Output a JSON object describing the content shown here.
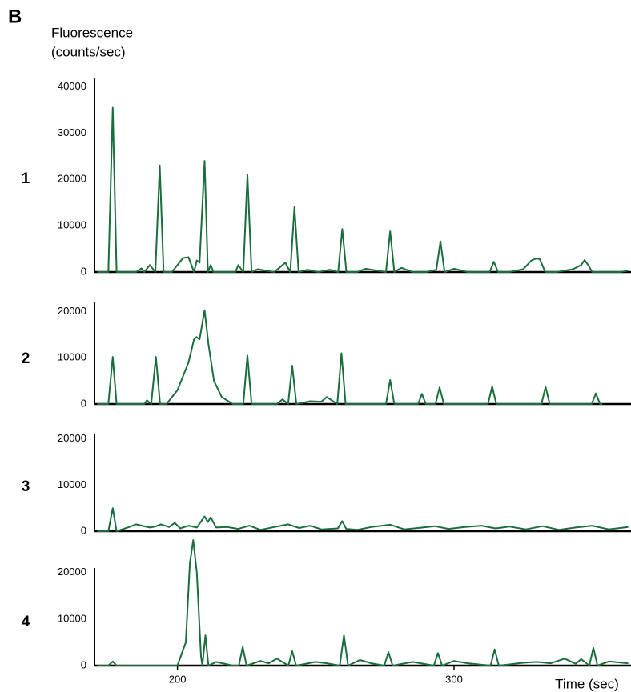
{
  "panel_label": "B",
  "chart_data": [
    {
      "type": "line",
      "title": "1",
      "y_label": [
        "Fluorescence",
        "(counts/sec)"
      ],
      "color": "#1a6e3c",
      "xlim": [
        170,
        364
      ],
      "ylim": [
        0,
        42000
      ],
      "yticks": [
        0,
        10000,
        20000,
        30000,
        40000
      ],
      "x": [
        171,
        175,
        176.6,
        178,
        185,
        187,
        188,
        190,
        192,
        193.6,
        195,
        198,
        202,
        204,
        206,
        207,
        208,
        209.8,
        211,
        212,
        213,
        218,
        221,
        222,
        223.8,
        225.3,
        226.8,
        229,
        235,
        238,
        239,
        240.8,
        242.3,
        243.8,
        247,
        251,
        255,
        258.1,
        259.6,
        261.1,
        265,
        268,
        275.4,
        276.9,
        278.4,
        281,
        285,
        290,
        293.6,
        295.1,
        296.6,
        300,
        305,
        310,
        312.9,
        314.4,
        315.9,
        320,
        325,
        328,
        329.7,
        331,
        333,
        337,
        343,
        346,
        347.2,
        348.5,
        350,
        355,
        360,
        363
      ],
      "values": [
        0,
        0,
        35500,
        0,
        0,
        800,
        0,
        1500,
        0,
        23000,
        0,
        0,
        3000,
        3200,
        0,
        2500,
        2000,
        24000,
        0,
        1500,
        0,
        0,
        0,
        1500,
        0,
        21000,
        0,
        600,
        0,
        1500,
        2000,
        0,
        14000,
        0,
        500,
        0,
        500,
        0,
        9300,
        0,
        0,
        700,
        0,
        8800,
        0,
        900,
        0,
        0,
        500,
        6600,
        0,
        700,
        0,
        0,
        0,
        2200,
        0,
        0,
        600,
        2500,
        2900,
        2800,
        0,
        0,
        600,
        1500,
        2600,
        1500,
        0,
        0,
        0,
        300
      ]
    },
    {
      "type": "line",
      "title": "2",
      "color": "#1a6e3c",
      "xlim": [
        170,
        364
      ],
      "ylim": [
        0,
        22000
      ],
      "yticks": [
        0,
        10000,
        20000
      ],
      "x": [
        171,
        175,
        176.6,
        178,
        188,
        189,
        190.5,
        192.2,
        193.7,
        196,
        200,
        204,
        206,
        206.9,
        208,
        209.8,
        211.2,
        213.2,
        216,
        220,
        222,
        223.8,
        225.3,
        226.8,
        236,
        238,
        240,
        241.5,
        243,
        248,
        252,
        254,
        257.8,
        259.3,
        260.8,
        265,
        270,
        275.4,
        276.9,
        278.4,
        285,
        287,
        288.4,
        289.8,
        293.3,
        294.8,
        296.3,
        305,
        312.3,
        313.8,
        315.3,
        325,
        331.6,
        333.1,
        334.6,
        338,
        349.8,
        351.3,
        352.8,
        353.6
      ],
      "values": [
        0,
        0,
        10200,
        0,
        0,
        800,
        0,
        10200,
        0,
        0,
        3000,
        9000,
        14000,
        14500,
        14000,
        20300,
        13000,
        5000,
        1500,
        0,
        0,
        0,
        10500,
        0,
        0,
        1000,
        0,
        8300,
        0,
        600,
        500,
        1500,
        0,
        11000,
        0,
        0,
        0,
        0,
        5200,
        0,
        0,
        0,
        2200,
        0,
        0,
        3600,
        0,
        0,
        0,
        3800,
        0,
        0,
        0,
        3700,
        0,
        0,
        0,
        2300,
        0,
        0
      ]
    },
    {
      "type": "line",
      "title": "3",
      "color": "#1a6e3c",
      "xlim": [
        170,
        364
      ],
      "ylim": [
        0,
        21000
      ],
      "yticks": [
        0,
        10000,
        20000
      ],
      "x": [
        171,
        175,
        176.6,
        178,
        182,
        185,
        190,
        192,
        194,
        197,
        199,
        201,
        204,
        207,
        209.8,
        211,
        212,
        214,
        218,
        222,
        226,
        230,
        235,
        240,
        244,
        248,
        252,
        258,
        259.6,
        261,
        265,
        270,
        277,
        282,
        287,
        293,
        298,
        304,
        310,
        315,
        320,
        326,
        332,
        338,
        344,
        350,
        356,
        363
      ],
      "values": [
        0,
        0,
        5000,
        0,
        800,
        1500,
        800,
        1000,
        1500,
        900,
        1800,
        600,
        1200,
        800,
        3200,
        2000,
        3000,
        800,
        900,
        500,
        1200,
        300,
        900,
        1500,
        700,
        1200,
        400,
        600,
        2200,
        500,
        300,
        900,
        1400,
        400,
        700,
        1100,
        500,
        900,
        1200,
        600,
        1000,
        400,
        1100,
        300,
        800,
        1200,
        400,
        900
      ]
    },
    {
      "type": "line",
      "title": "4",
      "x_label": "Time (sec)",
      "color": "#1a6e3c",
      "xlim": [
        170,
        364
      ],
      "ylim": [
        0,
        21000
      ],
      "yticks": [
        0,
        10000,
        20000
      ],
      "xticks": [
        200,
        300
      ],
      "x": [
        171,
        175,
        176.6,
        178,
        200,
        203,
        204.5,
        205.7,
        207,
        208.5,
        209,
        210.1,
        211.2,
        214,
        220,
        222.2,
        223.6,
        225,
        230,
        233,
        236,
        240.1,
        241.5,
        242.9,
        250,
        254,
        258.7,
        260.2,
        261.7,
        266,
        270,
        274.8,
        276.3,
        277.8,
        285,
        288,
        292.7,
        294.2,
        295.7,
        300,
        305,
        313.2,
        314.7,
        316.2,
        325,
        330,
        335,
        340,
        344,
        346,
        348.9,
        350.4,
        351.9,
        356,
        363
      ],
      "values": [
        0,
        0,
        900,
        0,
        0,
        5000,
        22000,
        27000,
        20000,
        2000,
        0,
        6500,
        0,
        800,
        0,
        0,
        4000,
        0,
        1000,
        500,
        1500,
        0,
        3100,
        0,
        800,
        500,
        0,
        6500,
        0,
        1200,
        500,
        0,
        2900,
        0,
        800,
        500,
        0,
        2700,
        0,
        1000,
        500,
        0,
        3500,
        0,
        600,
        800,
        500,
        1500,
        400,
        1400,
        0,
        3800,
        0,
        900,
        500
      ]
    }
  ]
}
